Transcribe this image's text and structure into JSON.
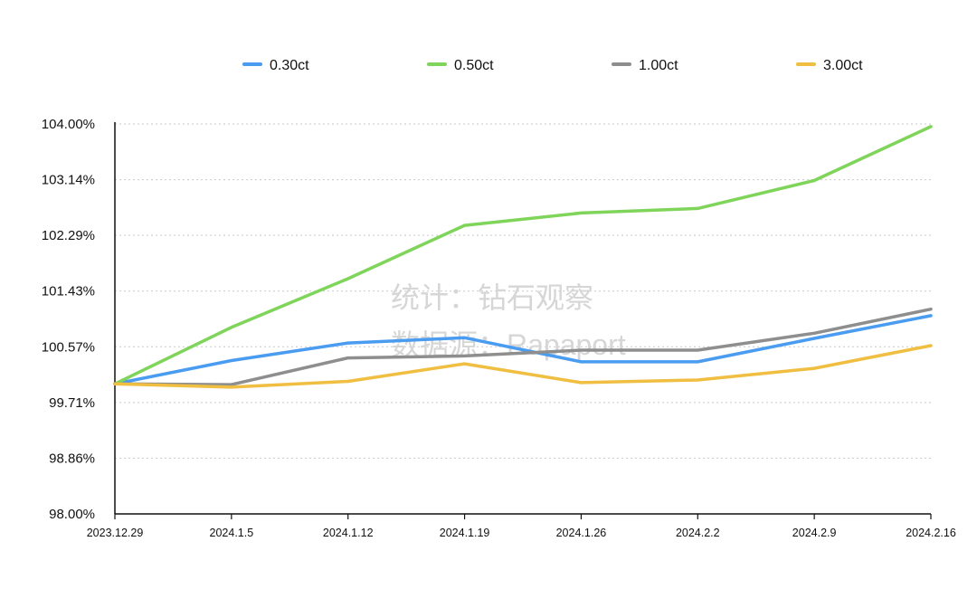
{
  "chart_data": {
    "type": "line",
    "title": "",
    "xlabel": "",
    "ylabel": "",
    "categories": [
      "2023.12.29",
      "2024.1.5",
      "2024.1.12",
      "2024.1.19",
      "2024.1.26",
      "2024.2.2",
      "2024.2.9",
      "2024.2.16"
    ],
    "y_ticks": [
      "98.00%",
      "98.86%",
      "99.71%",
      "100.57%",
      "101.43%",
      "102.29%",
      "103.14%",
      "104.00%"
    ],
    "ylim": [
      98.0,
      104.0
    ],
    "y_unit": "%",
    "grid": true,
    "legend_position": "top",
    "series": [
      {
        "name": "0.30ct",
        "color": "#4a9cf0",
        "values": [
          100.0,
          100.36,
          100.63,
          100.71,
          100.34,
          100.34,
          100.7,
          101.05
        ]
      },
      {
        "name": "0.50ct",
        "color": "#7fd45a",
        "values": [
          100.0,
          100.87,
          101.62,
          102.44,
          102.63,
          102.7,
          103.13,
          103.96
        ]
      },
      {
        "name": "1.00ct",
        "color": "#8e8e8e",
        "values": [
          100.0,
          99.99,
          100.4,
          100.43,
          100.52,
          100.52,
          100.78,
          101.15
        ]
      },
      {
        "name": "3.00ct",
        "color": "#f0be41",
        "values": [
          100.0,
          99.95,
          100.04,
          100.31,
          100.02,
          100.06,
          100.24,
          100.59
        ]
      }
    ],
    "watermark": [
      "统计：钻石观察",
      "数据源：Rapaport"
    ]
  }
}
